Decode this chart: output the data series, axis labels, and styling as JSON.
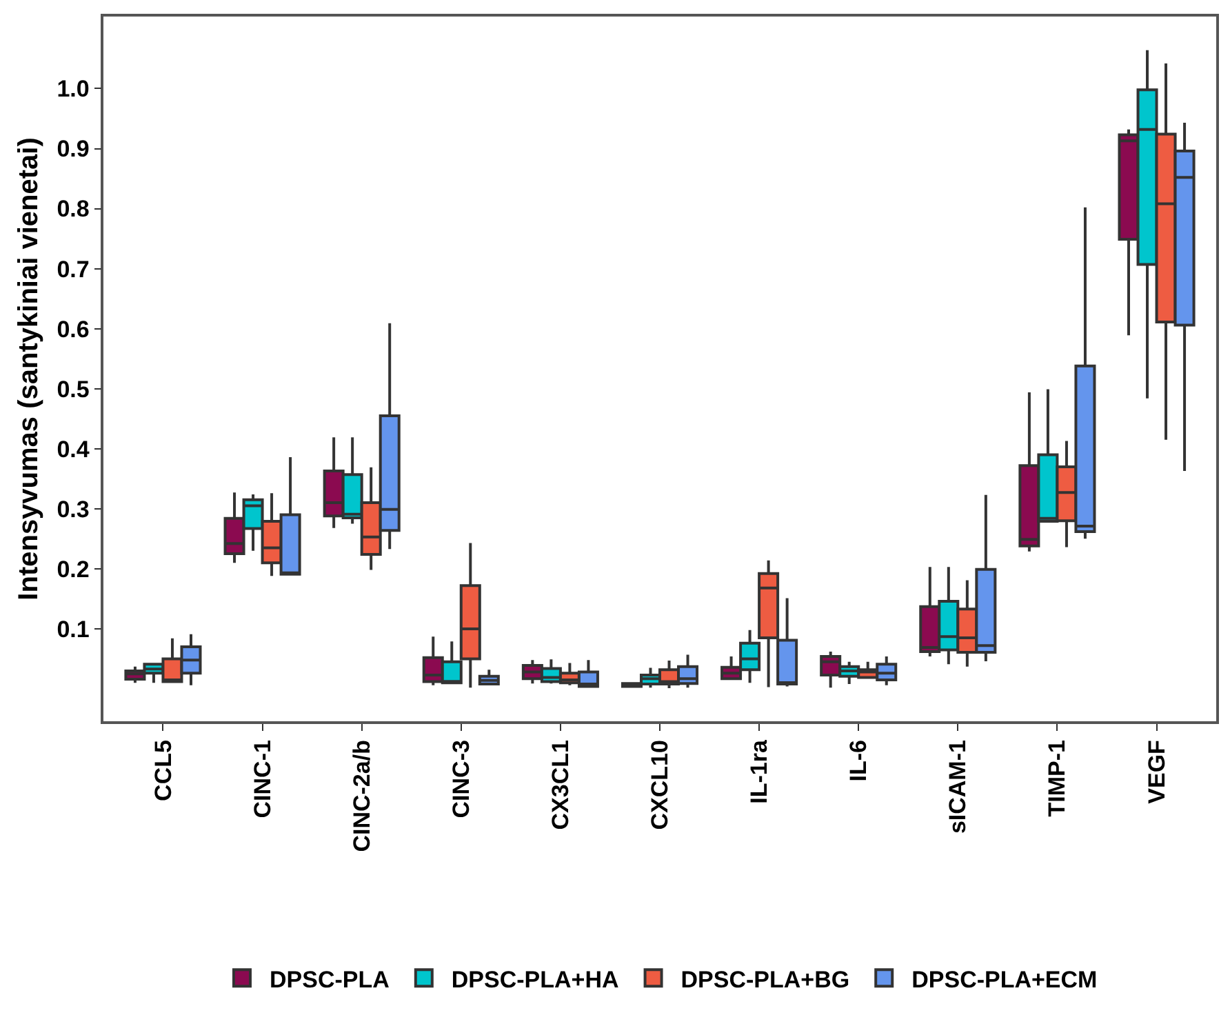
{
  "chart_data": {
    "type": "box",
    "ylabel": "Intensyvumas (santykiniai vienetai)",
    "categories": [
      "CCL5",
      "CINC-1",
      "CINC-2a/b",
      "CINC-3",
      "CX3CL1",
      "CXCL10",
      "IL-1ra",
      "IL-6",
      "sICAM-1",
      "TIMP-1",
      "VEGF"
    ],
    "ylim": [
      -0.054,
      1.12
    ],
    "yticks": [
      0.1,
      0.2,
      0.3,
      0.4,
      0.5,
      0.6,
      0.7,
      0.8,
      0.9,
      {
        "value": 1,
        "label": "1.0"
      }
    ],
    "legend": "bottom",
    "series": [
      {
        "name": "DPSC-PLA",
        "color": "#8b0a50",
        "boxes": [
          {
            "low": 0.01,
            "q1": 0.016,
            "median": 0.025,
            "q3": 0.03,
            "high": 0.037
          },
          {
            "low": 0.21,
            "q1": 0.225,
            "median": 0.242,
            "q3": 0.284,
            "high": 0.327
          },
          {
            "low": 0.268,
            "q1": 0.288,
            "median": 0.31,
            "q3": 0.363,
            "high": 0.419
          },
          {
            "low": 0.006,
            "q1": 0.012,
            "median": 0.023,
            "q3": 0.052,
            "high": 0.087
          },
          {
            "low": 0.009,
            "q1": 0.017,
            "median": 0.028,
            "q3": 0.039,
            "high": 0.048
          },
          {
            "low": 0.002,
            "q1": 0.004,
            "median": 0.006,
            "q3": 0.009,
            "high": 0.009
          },
          {
            "low": 0.017,
            "q1": 0.017,
            "median": 0.026,
            "q3": 0.036,
            "high": 0.054
          },
          {
            "low": 0.002,
            "q1": 0.023,
            "median": 0.045,
            "q3": 0.054,
            "high": 0.062
          },
          {
            "low": 0.054,
            "q1": 0.062,
            "median": 0.069,
            "q3": 0.137,
            "high": 0.203
          },
          {
            "low": 0.229,
            "q1": 0.238,
            "median": 0.249,
            "q3": 0.372,
            "high": 0.494
          },
          {
            "low": 0.589,
            "q1": 0.749,
            "median": 0.913,
            "q3": 0.923,
            "high": 0.932
          }
        ]
      },
      {
        "name": "DPSC-PLA+HA",
        "color": "#00c5cd",
        "boxes": [
          {
            "low": 0.01,
            "q1": 0.026,
            "median": 0.033,
            "q3": 0.041,
            "high": 0.042
          },
          {
            "low": 0.23,
            "q1": 0.267,
            "median": 0.305,
            "q3": 0.315,
            "high": 0.324
          },
          {
            "low": 0.275,
            "q1": 0.285,
            "median": 0.291,
            "q3": 0.357,
            "high": 0.419
          },
          {
            "low": 0.01,
            "q1": 0.01,
            "median": 0.012,
            "q3": 0.045,
            "high": 0.079
          },
          {
            "low": 0.009,
            "q1": 0.012,
            "median": 0.019,
            "q3": 0.034,
            "high": 0.049
          },
          {
            "low": 0.002,
            "q1": 0.008,
            "median": 0.017,
            "q3": 0.023,
            "high": 0.035
          },
          {
            "low": 0.01,
            "q1": 0.032,
            "median": 0.05,
            "q3": 0.076,
            "high": 0.098
          },
          {
            "low": 0.008,
            "q1": 0.021,
            "median": 0.03,
            "q3": 0.037,
            "high": 0.045
          },
          {
            "low": 0.041,
            "q1": 0.065,
            "median": 0.087,
            "q3": 0.146,
            "high": 0.203
          },
          {
            "low": 0.279,
            "q1": 0.279,
            "median": 0.284,
            "q3": 0.39,
            "high": 0.499
          },
          {
            "low": 0.484,
            "q1": 0.707,
            "median": 0.932,
            "q3": 0.998,
            "high": 1.064
          }
        ]
      },
      {
        "name": "DPSC-PLA+BG",
        "color": "#ee5c42",
        "boxes": [
          {
            "low": 0.01,
            "q1": 0.012,
            "median": 0.015,
            "q3": 0.05,
            "high": 0.084
          },
          {
            "low": 0.188,
            "q1": 0.21,
            "median": 0.235,
            "q3": 0.279,
            "high": 0.326
          },
          {
            "low": 0.198,
            "q1": 0.224,
            "median": 0.253,
            "q3": 0.31,
            "high": 0.369
          },
          {
            "low": 0.002,
            "q1": 0.05,
            "median": 0.1,
            "q3": 0.172,
            "high": 0.243
          },
          {
            "low": 0.006,
            "q1": 0.01,
            "median": 0.015,
            "q3": 0.026,
            "high": 0.043
          },
          {
            "low": 0.001,
            "q1": 0.008,
            "median": 0.012,
            "q3": 0.032,
            "high": 0.047
          },
          {
            "low": 0.003,
            "q1": 0.085,
            "median": 0.168,
            "q3": 0.192,
            "high": 0.214
          },
          {
            "low": 0.019,
            "q1": 0.019,
            "median": 0.028,
            "q3": 0.032,
            "high": 0.045
          },
          {
            "low": 0.037,
            "q1": 0.061,
            "median": 0.085,
            "q3": 0.133,
            "high": 0.181
          },
          {
            "low": 0.236,
            "q1": 0.28,
            "median": 0.327,
            "q3": 0.37,
            "high": 0.413
          },
          {
            "low": 0.415,
            "q1": 0.611,
            "median": 0.808,
            "q3": 0.924,
            "high": 1.042
          }
        ]
      },
      {
        "name": "DPSC-PLA+ECM",
        "color": "#6495ed",
        "boxes": [
          {
            "low": 0.006,
            "q1": 0.026,
            "median": 0.048,
            "q3": 0.07,
            "high": 0.091
          },
          {
            "low": 0.191,
            "q1": 0.191,
            "median": 0.193,
            "q3": 0.29,
            "high": 0.386
          },
          {
            "low": 0.233,
            "q1": 0.264,
            "median": 0.299,
            "q3": 0.455,
            "high": 0.609
          },
          {
            "low": 0.008,
            "q1": 0.008,
            "median": 0.014,
            "q3": 0.021,
            "high": 0.032
          },
          {
            "low": 0.004,
            "q1": 0.004,
            "median": 0.008,
            "q3": 0.028,
            "high": 0.048
          },
          {
            "low": 0.002,
            "q1": 0.009,
            "median": 0.017,
            "q3": 0.037,
            "high": 0.057
          },
          {
            "low": 0.004,
            "q1": 0.008,
            "median": 0.009,
            "q3": 0.081,
            "high": 0.151
          },
          {
            "low": 0.006,
            "q1": 0.015,
            "median": 0.026,
            "q3": 0.041,
            "high": 0.054
          },
          {
            "low": 0.046,
            "q1": 0.061,
            "median": 0.072,
            "q3": 0.199,
            "high": 0.323
          },
          {
            "low": 0.25,
            "q1": 0.262,
            "median": 0.271,
            "q3": 0.538,
            "high": 0.802
          },
          {
            "low": 0.363,
            "q1": 0.606,
            "median": 0.852,
            "q3": 0.896,
            "high": 0.943
          }
        ]
      }
    ]
  }
}
